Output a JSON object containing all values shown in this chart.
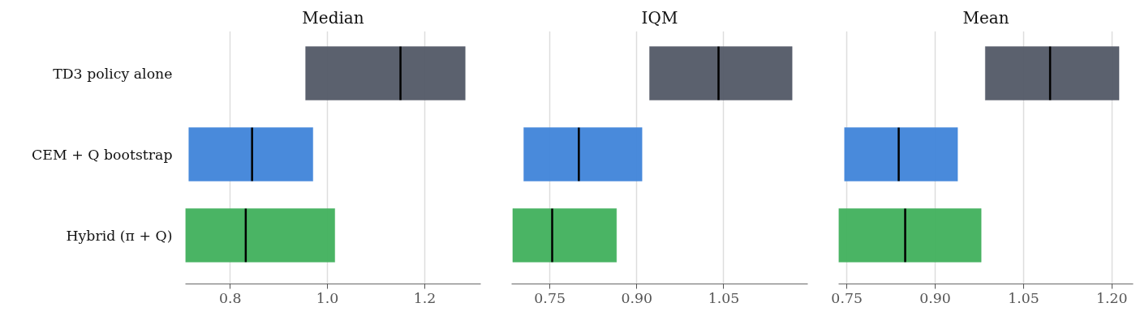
{
  "chart_data": [
    {
      "type": "box",
      "orientation": "horizontal",
      "title": "Median",
      "categories": [
        "TD3 policy alone",
        "CEM + Q bootstrap",
        "Hybrid (π + Q)"
      ],
      "colors": [
        "#525866",
        "#3f84d9",
        "#40b05c"
      ],
      "boxes": [
        {
          "low": 0.955,
          "q1": 0.955,
          "median": 1.15,
          "q3": 1.283,
          "high": 1.283
        },
        {
          "low": 0.715,
          "q1": 0.715,
          "median": 0.845,
          "q3": 0.97,
          "high": 0.97
        },
        {
          "low": 0.708,
          "q1": 0.708,
          "median": 0.832,
          "q3": 1.015,
          "high": 1.015
        }
      ],
      "xlim": [
        0.708,
        1.315
      ],
      "xticks": [
        {
          "value": 0.8,
          "label": "0.8"
        },
        {
          "value": 1.0,
          "label": "1.0"
        },
        {
          "value": 1.2,
          "label": "1.2"
        }
      ],
      "grid": "x"
    },
    {
      "type": "box",
      "orientation": "horizontal",
      "title": "IQM",
      "colors": [
        "#525866",
        "#3f84d9",
        "#40b05c"
      ],
      "boxes": [
        {
          "low": 0.922,
          "q1": 0.922,
          "median": 1.041,
          "q3": 1.168,
          "high": 1.168
        },
        {
          "low": 0.705,
          "q1": 0.705,
          "median": 0.8,
          "q3": 0.909,
          "high": 0.909
        },
        {
          "low": 0.686,
          "q1": 0.686,
          "median": 0.754,
          "q3": 0.865,
          "high": 0.865
        }
      ],
      "xlim": [
        0.684,
        1.195
      ],
      "xticks": [
        {
          "value": 0.75,
          "label": "0.75"
        },
        {
          "value": 0.9,
          "label": "0.90"
        },
        {
          "value": 1.05,
          "label": "1.05"
        }
      ],
      "grid": "x",
      "tick_labels": "x"
    },
    {
      "type": "box",
      "orientation": "horizontal",
      "title": "Mean",
      "colors": [
        "#525866",
        "#3f84d9",
        "#40b05c"
      ],
      "boxes": [
        {
          "low": 0.985,
          "q1": 0.985,
          "median": 1.095,
          "q3": 1.212,
          "high": 1.212
        },
        {
          "low": 0.746,
          "q1": 0.746,
          "median": 0.838,
          "q3": 0.938,
          "high": 0.938
        },
        {
          "low": 0.736,
          "q1": 0.736,
          "median": 0.849,
          "q3": 0.978,
          "high": 0.978
        }
      ],
      "xlim": [
        0.736,
        1.236
      ],
      "xticks": [
        {
          "value": 0.75,
          "label": "0.75"
        },
        {
          "value": 0.9,
          "label": "0.90"
        },
        {
          "value": 1.05,
          "label": "1.05"
        },
        {
          "value": 1.2,
          "label": "1.20"
        }
      ],
      "grid": "x",
      "tick_labels": "x"
    }
  ]
}
